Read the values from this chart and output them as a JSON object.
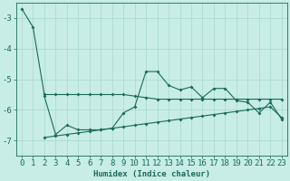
{
  "xlabel": "Humidex (Indice chaleur)",
  "background_color": "#c8ece6",
  "grid_color": "#a8d8cf",
  "line_color": "#1a6b5a",
  "ylim": [
    -7.5,
    -2.5
  ],
  "xlim": [
    -0.5,
    23.5
  ],
  "yticks": [
    -7,
    -6,
    -5,
    -4,
    -3
  ],
  "xticks": [
    0,
    1,
    2,
    3,
    4,
    5,
    6,
    7,
    8,
    9,
    10,
    11,
    12,
    13,
    14,
    15,
    16,
    17,
    18,
    19,
    20,
    21,
    22,
    23
  ],
  "line1_x": [
    0,
    1,
    2,
    3,
    4,
    5,
    6,
    7,
    8,
    9,
    10,
    11,
    12,
    13,
    14,
    15,
    16,
    17,
    18,
    19,
    20,
    21,
    22,
    23
  ],
  "line1_y": [
    -2.7,
    -3.3,
    -5.5,
    -5.5,
    -5.5,
    -5.5,
    -5.5,
    -5.5,
    -5.5,
    -5.5,
    -5.55,
    -5.6,
    -5.65,
    -5.65,
    -5.65,
    -5.65,
    -5.65,
    -5.65,
    -5.65,
    -5.65,
    -5.65,
    -5.65,
    -5.65,
    -5.65
  ],
  "line2_x": [
    2,
    3,
    4,
    5,
    6,
    7,
    8,
    9,
    10,
    11,
    12,
    13,
    14,
    15,
    16,
    17,
    18,
    19,
    20,
    21,
    22,
    23
  ],
  "line2_y": [
    -5.55,
    -6.8,
    -6.5,
    -6.65,
    -6.65,
    -6.65,
    -6.6,
    -6.1,
    -5.9,
    -4.75,
    -4.75,
    -5.2,
    -5.35,
    -5.25,
    -5.6,
    -5.3,
    -5.3,
    -5.7,
    -5.75,
    -6.1,
    -5.75,
    -6.3
  ],
  "line3_x": [
    2,
    3,
    4,
    5,
    6,
    7,
    8,
    9,
    10,
    11,
    12,
    13,
    14,
    15,
    16,
    17,
    18,
    19,
    20,
    21,
    22,
    23
  ],
  "line3_y": [
    -6.9,
    -6.85,
    -6.8,
    -6.75,
    -6.7,
    -6.65,
    -6.6,
    -6.55,
    -6.5,
    -6.45,
    -6.4,
    -6.35,
    -6.3,
    -6.25,
    -6.2,
    -6.15,
    -6.1,
    -6.05,
    -6.0,
    -5.95,
    -5.9,
    -6.25
  ],
  "xlabel_fontsize": 6.5,
  "tick_fontsize": 6.5
}
